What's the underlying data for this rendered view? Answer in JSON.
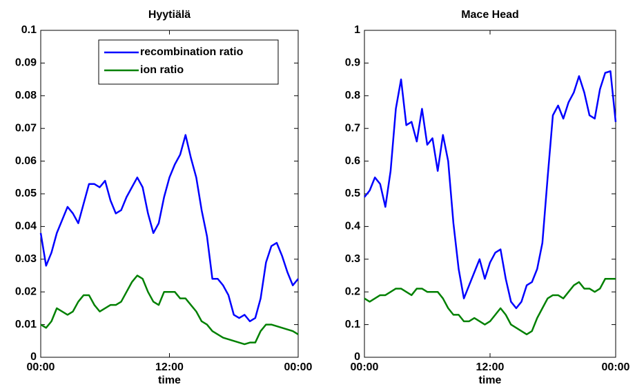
{
  "chart_data": [
    {
      "type": "line",
      "title": "Hyytiälä",
      "x_label": "time",
      "x": [
        0,
        0.5,
        1,
        1.5,
        2,
        2.5,
        3,
        3.5,
        4,
        4.5,
        5,
        5.5,
        6,
        6.5,
        7,
        7.5,
        8,
        8.5,
        9,
        9.5,
        10,
        10.5,
        11,
        11.5,
        12,
        12.5,
        13,
        13.5,
        14,
        14.5,
        15,
        15.5,
        16,
        16.5,
        17,
        17.5,
        18,
        18.5,
        19,
        19.5,
        20,
        20.5,
        21,
        21.5,
        22,
        22.5,
        23,
        23.5,
        24
      ],
      "xlim": [
        0,
        24
      ],
      "xticks": [
        {
          "value": 0,
          "label": "00:00"
        },
        {
          "value": 12,
          "label": "12:00"
        },
        {
          "value": 24,
          "label": "00:00"
        }
      ],
      "ylim": [
        0,
        0.1
      ],
      "yticks": [
        0,
        0.01,
        0.02,
        0.03,
        0.04,
        0.05,
        0.06,
        0.07,
        0.08,
        0.09,
        0.1
      ],
      "legend": "northeast",
      "series": [
        {
          "name": "recombination ratio",
          "color": "#0000ff",
          "values": [
            0.038,
            0.028,
            0.032,
            0.038,
            0.042,
            0.046,
            0.044,
            0.041,
            0.047,
            0.053,
            0.053,
            0.052,
            0.054,
            0.048,
            0.044,
            0.045,
            0.049,
            0.052,
            0.055,
            0.052,
            0.044,
            0.038,
            0.041,
            0.049,
            0.055,
            0.059,
            0.062,
            0.068,
            0.061,
            0.055,
            0.045,
            0.037,
            0.024,
            0.024,
            0.022,
            0.019,
            0.013,
            0.012,
            0.013,
            0.011,
            0.012,
            0.018,
            0.029,
            0.034,
            0.035,
            0.031,
            0.026,
            0.022,
            0.024
          ]
        },
        {
          "name": "ion ratio",
          "color": "#008000",
          "values": [
            0.01,
            0.009,
            0.011,
            0.015,
            0.014,
            0.013,
            0.014,
            0.017,
            0.019,
            0.019,
            0.016,
            0.014,
            0.015,
            0.016,
            0.016,
            0.017,
            0.02,
            0.023,
            0.025,
            0.024,
            0.02,
            0.017,
            0.016,
            0.02,
            0.02,
            0.02,
            0.018,
            0.018,
            0.016,
            0.014,
            0.011,
            0.01,
            0.008,
            0.007,
            0.006,
            0.0055,
            0.005,
            0.0045,
            0.004,
            0.0045,
            0.0045,
            0.008,
            0.01,
            0.01,
            0.0095,
            0.009,
            0.0085,
            0.008,
            0.007
          ]
        }
      ]
    },
    {
      "type": "line",
      "title": "Mace Head",
      "x_label": "time",
      "x": [
        0,
        0.5,
        1,
        1.5,
        2,
        2.5,
        3,
        3.5,
        4,
        4.5,
        5,
        5.5,
        6,
        6.5,
        7,
        7.5,
        8,
        8.5,
        9,
        9.5,
        10,
        10.5,
        11,
        11.5,
        12,
        12.5,
        13,
        13.5,
        14,
        14.5,
        15,
        15.5,
        16,
        16.5,
        17,
        17.5,
        18,
        18.5,
        19,
        19.5,
        20,
        20.5,
        21,
        21.5,
        22,
        22.5,
        23,
        23.5,
        24
      ],
      "xlim": [
        0,
        24
      ],
      "xticks": [
        {
          "value": 0,
          "label": "00:00"
        },
        {
          "value": 12,
          "label": "12:00"
        },
        {
          "value": 24,
          "label": "00:00"
        }
      ],
      "ylim": [
        0,
        1
      ],
      "yticks": [
        0,
        0.1,
        0.2,
        0.3,
        0.4,
        0.5,
        0.6,
        0.7,
        0.8,
        0.9,
        1
      ],
      "series": [
        {
          "color": "#0000ff",
          "values": [
            0.49,
            0.51,
            0.55,
            0.53,
            0.46,
            0.57,
            0.76,
            0.85,
            0.71,
            0.72,
            0.66,
            0.76,
            0.65,
            0.67,
            0.57,
            0.68,
            0.6,
            0.41,
            0.27,
            0.18,
            0.22,
            0.26,
            0.3,
            0.24,
            0.29,
            0.32,
            0.33,
            0.24,
            0.17,
            0.15,
            0.17,
            0.22,
            0.23,
            0.27,
            0.35,
            0.55,
            0.74,
            0.77,
            0.73,
            0.78,
            0.81,
            0.86,
            0.81,
            0.74,
            0.73,
            0.82,
            0.87,
            0.875,
            0.72
          ]
        },
        {
          "color": "#008000",
          "values": [
            0.18,
            0.17,
            0.18,
            0.19,
            0.19,
            0.2,
            0.21,
            0.21,
            0.2,
            0.19,
            0.21,
            0.21,
            0.2,
            0.2,
            0.2,
            0.18,
            0.15,
            0.13,
            0.13,
            0.11,
            0.11,
            0.12,
            0.11,
            0.1,
            0.11,
            0.13,
            0.15,
            0.13,
            0.1,
            0.09,
            0.08,
            0.07,
            0.08,
            0.12,
            0.15,
            0.18,
            0.19,
            0.19,
            0.18,
            0.2,
            0.22,
            0.23,
            0.21,
            0.21,
            0.2,
            0.21,
            0.24,
            0.24,
            0.24
          ]
        }
      ]
    }
  ]
}
